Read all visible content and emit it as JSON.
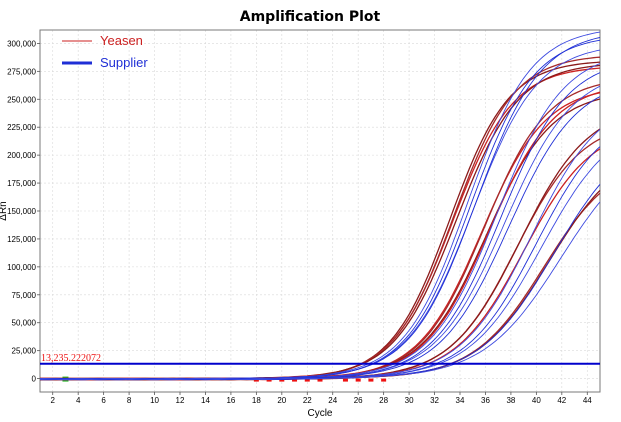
{
  "colors": {
    "yeasen": "#cc2222",
    "yeasen_dark": "#8b1a1a",
    "supplier": "#1f2fd6",
    "supplier_light": "#3d4ae0",
    "threshold": "#0000cc",
    "baseline_marker_green": "#22bb22",
    "baseline_marker_red": "#ee1111",
    "grid": "#d9d9d9"
  },
  "chart_data": {
    "type": "line",
    "title": "Amplification Plot",
    "xlabel": "Cycle",
    "ylabel": "ΔRn",
    "xlim": [
      1,
      45
    ],
    "ylim": [
      -12000,
      312000
    ],
    "grid": true,
    "legend_position": "top-left",
    "x_ticks": [
      2,
      4,
      6,
      8,
      10,
      12,
      14,
      16,
      18,
      20,
      22,
      24,
      26,
      28,
      30,
      32,
      34,
      36,
      38,
      40,
      42,
      44
    ],
    "y_ticks": [
      0,
      25000,
      50000,
      75000,
      100000,
      125000,
      150000,
      175000,
      200000,
      225000,
      250000,
      275000,
      300000
    ],
    "y_tick_labels": [
      "0",
      "25,000",
      "50,000",
      "75,000",
      "100,000",
      "125,000",
      "150,000",
      "175,000",
      "200,000",
      "225,000",
      "250,000",
      "275,000",
      "300,000"
    ],
    "legend": [
      {
        "key": "yeasen",
        "label": "Yeasen"
      },
      {
        "key": "supplier",
        "label": "Supplier"
      }
    ],
    "threshold": {
      "value": 13235.222072,
      "label": "13,235.222072"
    },
    "baseline_start_marker_cycle": 3,
    "baseline_end_marker_cycles": [
      18,
      19,
      20,
      21,
      22,
      23,
      25,
      26,
      27,
      28
    ],
    "series": [
      {
        "name": "Yeasen",
        "midpoint": 33.2,
        "slope": 0.43,
        "max": 285000,
        "width": 1.3
      },
      {
        "name": "Yeasen",
        "midpoint": 33.4,
        "slope": 0.42,
        "max": 280000,
        "width": 1.3
      },
      {
        "name": "Yeasen",
        "midpoint": 33.5,
        "slope": 0.42,
        "max": 290000,
        "width": 1.3
      },
      {
        "name": "Yeasen",
        "midpoint": 33.7,
        "slope": 0.41,
        "max": 283000,
        "width": 1.3
      },
      {
        "name": "Yeasen",
        "midpoint": 35.7,
        "slope": 0.4,
        "max": 262000,
        "width": 1.3
      },
      {
        "name": "Yeasen",
        "midpoint": 35.9,
        "slope": 0.4,
        "max": 270000,
        "width": 1.3
      },
      {
        "name": "Yeasen",
        "midpoint": 36.1,
        "slope": 0.39,
        "max": 258000,
        "width": 1.3
      },
      {
        "name": "Yeasen",
        "midpoint": 36.3,
        "slope": 0.39,
        "max": 265000,
        "width": 1.3
      },
      {
        "name": "Yeasen",
        "midpoint": 38.4,
        "slope": 0.38,
        "max": 232000,
        "width": 1.3
      },
      {
        "name": "Yeasen",
        "midpoint": 38.7,
        "slope": 0.37,
        "max": 245000,
        "width": 1.3
      },
      {
        "name": "Yeasen",
        "midpoint": 39.0,
        "slope": 0.37,
        "max": 228000,
        "width": 1.3
      },
      {
        "name": "Yeasen",
        "midpoint": 40.6,
        "slope": 0.36,
        "max": 200000,
        "width": 1.3
      },
      {
        "name": "Yeasen",
        "midpoint": 41.0,
        "slope": 0.35,
        "max": 210000,
        "width": 1.3
      },
      {
        "name": "Supplier",
        "midpoint": 34.6,
        "slope": 0.4,
        "max": 315000,
        "width": 0.9
      },
      {
        "name": "Supplier",
        "midpoint": 34.8,
        "slope": 0.4,
        "max": 308000,
        "width": 0.9
      },
      {
        "name": "Supplier",
        "midpoint": 35.0,
        "slope": 0.39,
        "max": 300000,
        "width": 0.9
      },
      {
        "name": "Supplier",
        "midpoint": 35.2,
        "slope": 0.39,
        "max": 312000,
        "width": 0.9
      },
      {
        "name": "Supplier",
        "midpoint": 36.9,
        "slope": 0.38,
        "max": 295000,
        "width": 0.9
      },
      {
        "name": "Supplier",
        "midpoint": 37.2,
        "slope": 0.38,
        "max": 288000,
        "width": 0.9
      },
      {
        "name": "Supplier",
        "midpoint": 37.5,
        "slope": 0.37,
        "max": 278000,
        "width": 0.9
      },
      {
        "name": "Supplier",
        "midpoint": 37.8,
        "slope": 0.37,
        "max": 270000,
        "width": 0.9
      },
      {
        "name": "Supplier",
        "midpoint": 39.6,
        "slope": 0.36,
        "max": 255000,
        "width": 0.9
      },
      {
        "name": "Supplier",
        "midpoint": 40.0,
        "slope": 0.36,
        "max": 242000,
        "width": 0.9
      },
      {
        "name": "Supplier",
        "midpoint": 40.4,
        "slope": 0.35,
        "max": 235000,
        "width": 0.9
      },
      {
        "name": "Supplier",
        "midpoint": 41.4,
        "slope": 0.34,
        "max": 225000,
        "width": 0.9
      },
      {
        "name": "Supplier",
        "midpoint": 41.9,
        "slope": 0.33,
        "max": 215000,
        "width": 0.9
      }
    ]
  }
}
